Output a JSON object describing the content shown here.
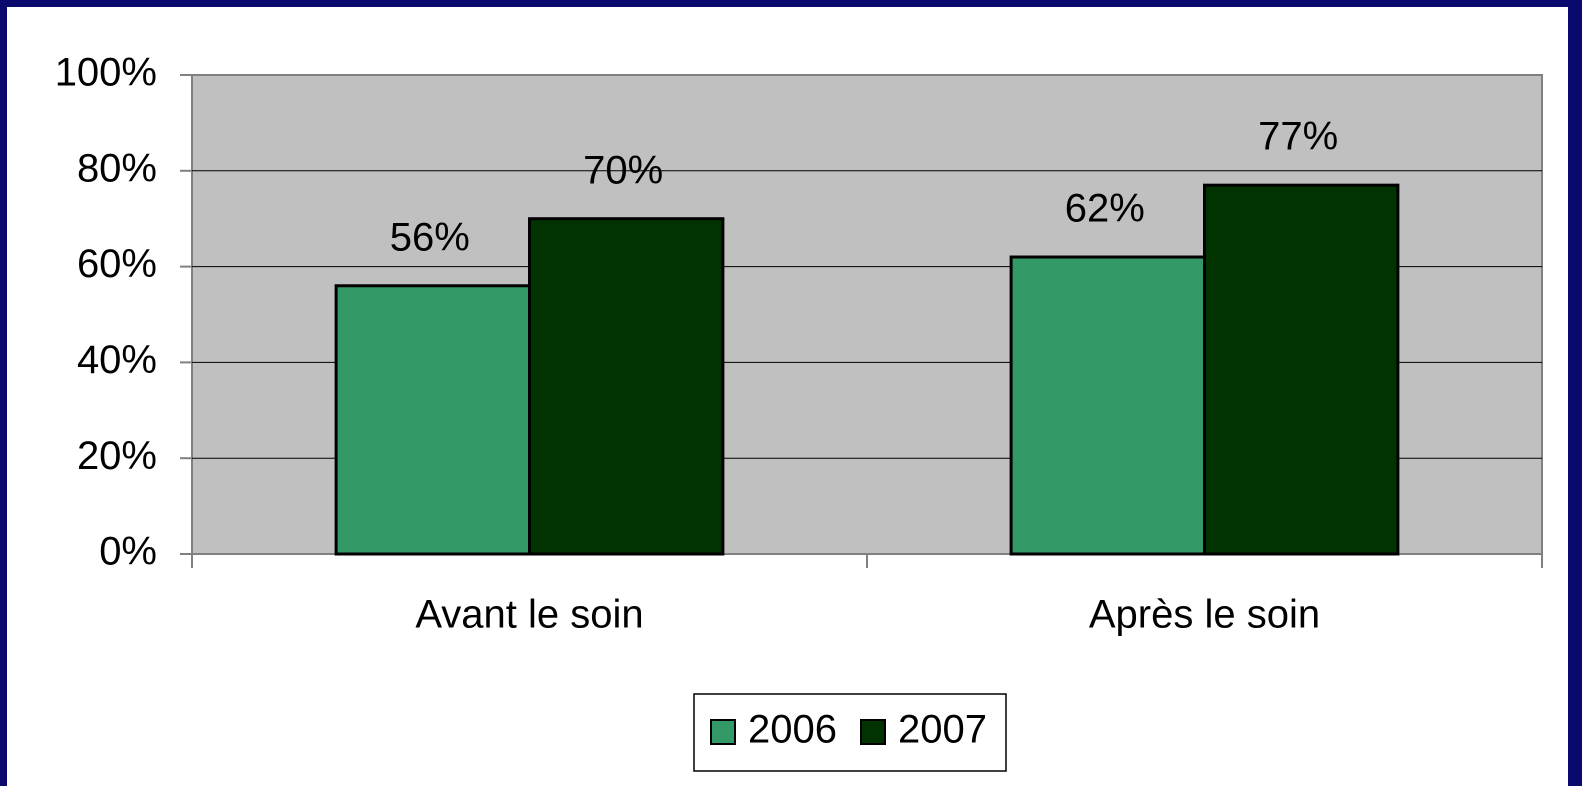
{
  "chart_data": {
    "type": "bar",
    "categories": [
      "Avant le soin",
      "Après le soin"
    ],
    "series": [
      {
        "name": "2006",
        "color": "#339966",
        "values": [
          56,
          62
        ],
        "value_labels": [
          "56%",
          "62%"
        ]
      },
      {
        "name": "2007",
        "color": "#003300",
        "values": [
          70,
          77
        ],
        "value_labels": [
          "70%",
          "77%"
        ]
      }
    ],
    "ylim": [
      0,
      100
    ],
    "yticks": [
      {
        "value": 0,
        "label": "0%"
      },
      {
        "value": 20,
        "label": "20%"
      },
      {
        "value": 40,
        "label": "40%"
      },
      {
        "value": 60,
        "label": "60%"
      },
      {
        "value": 80,
        "label": "80%"
      },
      {
        "value": 100,
        "label": "100%"
      }
    ],
    "grid": true,
    "legend": "bottom"
  }
}
